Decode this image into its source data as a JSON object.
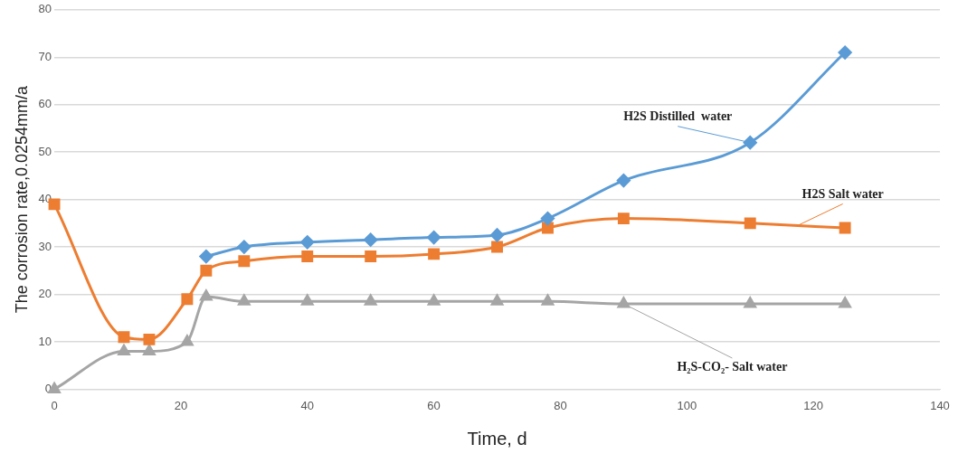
{
  "chart_data": {
    "type": "line",
    "xlabel": "Time, d",
    "ylabel": "The corrosion rate,0.0254mm/a",
    "xlim": [
      0,
      140
    ],
    "xticks": [
      0,
      20,
      40,
      60,
      80,
      100,
      120,
      140
    ],
    "ylim": [
      0,
      80
    ],
    "yticks": [
      0,
      10,
      20,
      30,
      40,
      50,
      60,
      70,
      80
    ],
    "grid": "y",
    "legend": false,
    "series": [
      {
        "name": "H2S Distilled  water",
        "color": "#5b9bd5",
        "marker": "diamond",
        "x": [
          24,
          30,
          40,
          50,
          60,
          70,
          78,
          90,
          110,
          125
        ],
        "values": [
          28,
          30,
          31,
          31.5,
          32,
          32.5,
          36,
          44,
          52,
          71
        ]
      },
      {
        "name": "H2S Salt water",
        "color": "#ed7d31",
        "marker": "square",
        "x": [
          0,
          11,
          15,
          21,
          24,
          30,
          40,
          50,
          60,
          70,
          78,
          90,
          110,
          125
        ],
        "values": [
          39,
          11,
          10.5,
          19,
          25,
          27,
          28,
          28,
          28.5,
          30,
          34,
          36,
          35,
          34
        ]
      },
      {
        "name": "H₂S-CO₂- Salt water",
        "color": "#a5a5a5",
        "marker": "triangle",
        "x": [
          0,
          11,
          15,
          21,
          24,
          30,
          40,
          50,
          60,
          70,
          78,
          90,
          110,
          125
        ],
        "values": [
          0,
          8,
          8,
          10,
          19.5,
          18.5,
          18.5,
          18.5,
          18.5,
          18.5,
          18.5,
          18,
          18,
          18
        ]
      }
    ]
  }
}
